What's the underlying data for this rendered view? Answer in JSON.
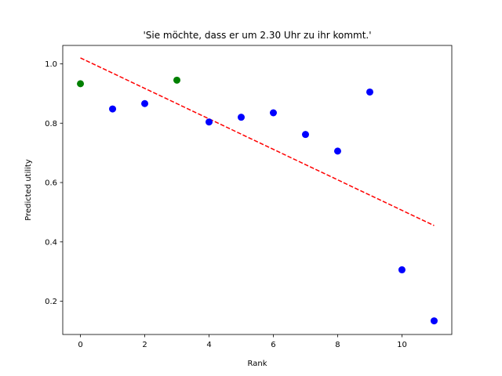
{
  "chart_data": {
    "type": "scatter",
    "title": "'Sie möchte, dass er um 2.30 Uhr zu ihr kommt.'",
    "xlabel": "Rank",
    "ylabel": "Predicted utility",
    "xlim": [
      -0.55,
      11.55
    ],
    "ylim": [
      0.088,
      1.062
    ],
    "xticks": [
      0,
      2,
      4,
      6,
      8,
      10
    ],
    "yticks": [
      0.2,
      0.4,
      0.6,
      0.8,
      1.0
    ],
    "xtick_labels": [
      "0",
      "2",
      "4",
      "6",
      "8",
      "10"
    ],
    "ytick_labels": [
      "0.2",
      "0.4",
      "0.6",
      "0.8",
      "1.0"
    ],
    "grid": false,
    "points": [
      {
        "x": 0,
        "y": 0.933,
        "color": "#008000"
      },
      {
        "x": 1,
        "y": 0.848,
        "color": "#0000ff"
      },
      {
        "x": 2,
        "y": 0.866,
        "color": "#0000ff"
      },
      {
        "x": 3,
        "y": 0.945,
        "color": "#008000"
      },
      {
        "x": 4,
        "y": 0.804,
        "color": "#0000ff"
      },
      {
        "x": 5,
        "y": 0.82,
        "color": "#0000ff"
      },
      {
        "x": 6,
        "y": 0.835,
        "color": "#0000ff"
      },
      {
        "x": 7,
        "y": 0.762,
        "color": "#0000ff"
      },
      {
        "x": 8,
        "y": 0.706,
        "color": "#0000ff"
      },
      {
        "x": 9,
        "y": 0.905,
        "color": "#0000ff"
      },
      {
        "x": 10,
        "y": 0.306,
        "color": "#0000ff"
      },
      {
        "x": 11,
        "y": 0.134,
        "color": "#0000ff"
      }
    ],
    "trendline": {
      "x": [
        0,
        11
      ],
      "y": [
        1.02,
        0.455
      ],
      "color": "#ff0000",
      "style": "dashed"
    }
  }
}
